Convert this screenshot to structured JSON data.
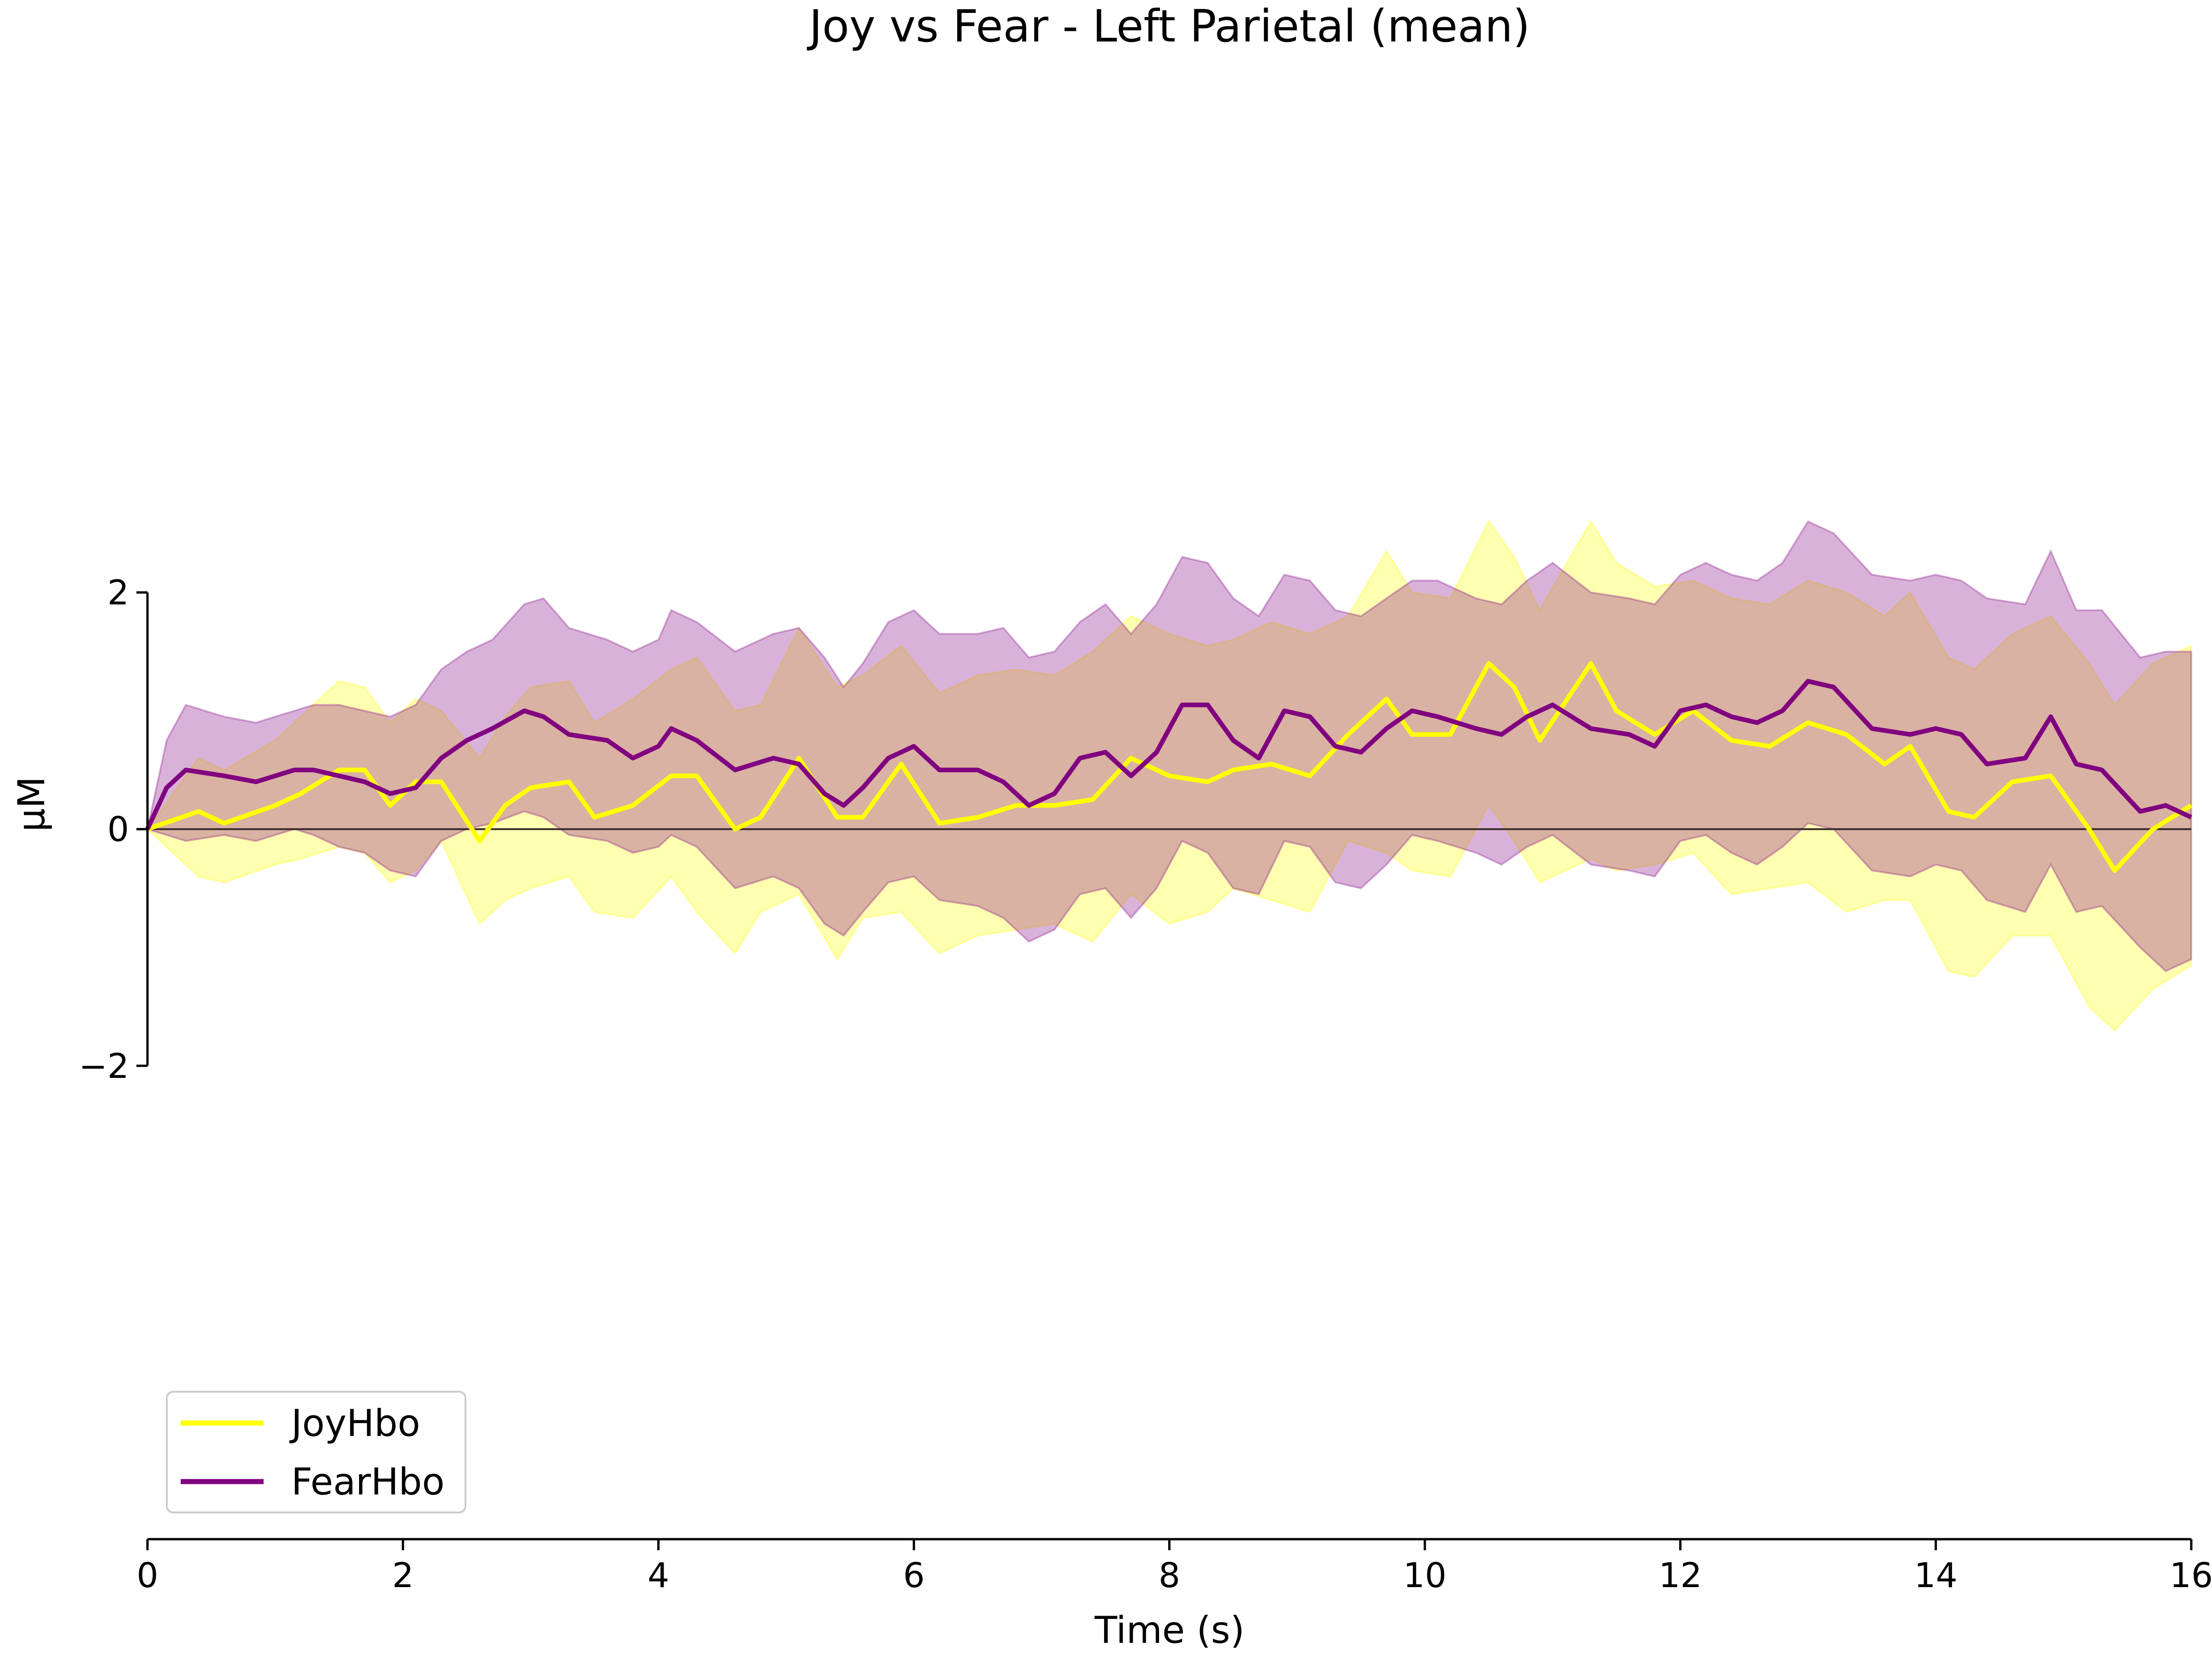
{
  "chart_data": {
    "type": "line",
    "title": "Joy vs Fear - Left Parietal (mean)",
    "xlabel": "Time (s)",
    "ylabel": "µM",
    "xlim": [
      0,
      16
    ],
    "ylim": [
      -2,
      2
    ],
    "ylim_view": [
      -6,
      6.5
    ],
    "xticks": [
      0,
      2,
      4,
      6,
      8,
      10,
      12,
      14,
      16
    ],
    "yticks": [
      -2,
      0,
      2
    ],
    "grid": false,
    "legend_position": "lower-left",
    "series": [
      {
        "name": "JoyHbo",
        "color": "#ffff00",
        "x": [
          0,
          0.4,
          0.6,
          1.0,
          1.2,
          1.5,
          1.7,
          1.9,
          2.1,
          2.3,
          2.6,
          2.8,
          3.0,
          3.3,
          3.5,
          3.8,
          4.1,
          4.3,
          4.6,
          4.8,
          5.1,
          5.4,
          5.6,
          5.9,
          6.2,
          6.5,
          6.8,
          7.1,
          7.4,
          7.7,
          8.0,
          8.3,
          8.5,
          8.8,
          9.1,
          9.4,
          9.7,
          9.9,
          10.2,
          10.5,
          10.7,
          10.9,
          11.3,
          11.5,
          11.8,
          12.1,
          12.4,
          12.7,
          13.0,
          13.3,
          13.6,
          13.8,
          14.1,
          14.3,
          14.6,
          14.9,
          15.2,
          15.4,
          15.7,
          16.0
        ],
        "y": [
          0.0,
          0.15,
          0.05,
          0.2,
          0.3,
          0.5,
          0.5,
          0.2,
          0.4,
          0.4,
          -0.1,
          0.2,
          0.35,
          0.4,
          0.1,
          0.2,
          0.45,
          0.45,
          0.0,
          0.1,
          0.6,
          0.1,
          0.1,
          0.55,
          0.05,
          0.1,
          0.2,
          0.2,
          0.25,
          0.6,
          0.45,
          0.4,
          0.5,
          0.55,
          0.45,
          0.8,
          1.1,
          0.8,
          0.8,
          1.4,
          1.2,
          0.75,
          1.4,
          1.0,
          0.8,
          1.0,
          0.75,
          0.7,
          0.9,
          0.8,
          0.55,
          0.7,
          0.15,
          0.1,
          0.4,
          0.45,
          0.0,
          -0.35,
          0.0,
          0.2
        ],
        "ci_lower": [
          0.0,
          -0.4,
          -0.45,
          -0.3,
          -0.25,
          -0.15,
          -0.2,
          -0.45,
          -0.35,
          -0.1,
          -0.8,
          -0.6,
          -0.5,
          -0.4,
          -0.7,
          -0.75,
          -0.4,
          -0.7,
          -1.05,
          -0.7,
          -0.55,
          -1.1,
          -0.75,
          -0.7,
          -1.05,
          -0.9,
          -0.85,
          -0.8,
          -0.95,
          -0.55,
          -0.8,
          -0.7,
          -0.5,
          -0.6,
          -0.7,
          -0.1,
          -0.2,
          -0.35,
          -0.4,
          0.2,
          -0.1,
          -0.45,
          -0.25,
          -0.35,
          -0.3,
          -0.2,
          -0.55,
          -0.5,
          -0.45,
          -0.7,
          -0.6,
          -0.6,
          -1.2,
          -1.25,
          -0.9,
          -0.9,
          -1.5,
          -1.7,
          -1.35,
          -1.15
        ],
        "ci_upper": [
          0.0,
          0.6,
          0.5,
          0.75,
          0.95,
          1.25,
          1.2,
          0.9,
          1.1,
          1.0,
          0.6,
          0.95,
          1.2,
          1.25,
          0.9,
          1.1,
          1.35,
          1.45,
          1.0,
          1.05,
          1.7,
          1.2,
          1.3,
          1.55,
          1.15,
          1.3,
          1.35,
          1.3,
          1.5,
          1.8,
          1.65,
          1.55,
          1.6,
          1.75,
          1.65,
          1.8,
          2.35,
          2.0,
          1.95,
          2.6,
          2.3,
          1.85,
          2.6,
          2.25,
          2.05,
          2.1,
          1.95,
          1.9,
          2.1,
          2.0,
          1.8,
          2.0,
          1.45,
          1.35,
          1.65,
          1.8,
          1.4,
          1.05,
          1.4,
          1.55
        ]
      },
      {
        "name": "FearHbo",
        "color": "#800080",
        "x": [
          0,
          0.15,
          0.3,
          0.6,
          0.85,
          1.0,
          1.15,
          1.3,
          1.5,
          1.7,
          1.9,
          2.1,
          2.3,
          2.5,
          2.7,
          2.95,
          3.1,
          3.3,
          3.6,
          3.8,
          4.0,
          4.1,
          4.3,
          4.6,
          4.9,
          5.1,
          5.3,
          5.45,
          5.6,
          5.8,
          6.0,
          6.2,
          6.5,
          6.7,
          6.9,
          7.1,
          7.3,
          7.5,
          7.7,
          7.9,
          8.1,
          8.3,
          8.5,
          8.7,
          8.9,
          9.1,
          9.3,
          9.5,
          9.7,
          9.9,
          10.1,
          10.4,
          10.6,
          10.8,
          11.0,
          11.3,
          11.6,
          11.8,
          12.0,
          12.2,
          12.4,
          12.6,
          12.8,
          13.0,
          13.2,
          13.5,
          13.8,
          14.0,
          14.2,
          14.4,
          14.7,
          14.9,
          15.1,
          15.3,
          15.6,
          15.8,
          16.0
        ],
        "y": [
          0.0,
          0.35,
          0.5,
          0.45,
          0.4,
          0.45,
          0.5,
          0.5,
          0.45,
          0.4,
          0.3,
          0.35,
          0.6,
          0.75,
          0.85,
          1.0,
          0.95,
          0.8,
          0.75,
          0.6,
          0.7,
          0.85,
          0.75,
          0.5,
          0.6,
          0.55,
          0.3,
          0.2,
          0.35,
          0.6,
          0.7,
          0.5,
          0.5,
          0.4,
          0.2,
          0.3,
          0.6,
          0.65,
          0.45,
          0.65,
          1.05,
          1.05,
          0.75,
          0.6,
          1.0,
          0.95,
          0.7,
          0.65,
          0.85,
          1.0,
          0.95,
          0.85,
          0.8,
          0.95,
          1.05,
          0.85,
          0.8,
          0.7,
          1.0,
          1.05,
          0.95,
          0.9,
          1.0,
          1.25,
          1.2,
          0.85,
          0.8,
          0.85,
          0.8,
          0.55,
          0.6,
          0.95,
          0.55,
          0.5,
          0.15,
          0.2,
          0.1
        ],
        "ci_lower": [
          0.0,
          -0.05,
          -0.1,
          -0.05,
          -0.1,
          -0.05,
          0.0,
          -0.05,
          -0.15,
          -0.2,
          -0.35,
          -0.4,
          -0.1,
          0.0,
          0.05,
          0.15,
          0.1,
          -0.05,
          -0.1,
          -0.2,
          -0.15,
          -0.05,
          -0.15,
          -0.5,
          -0.4,
          -0.5,
          -0.8,
          -0.9,
          -0.7,
          -0.45,
          -0.4,
          -0.6,
          -0.65,
          -0.75,
          -0.95,
          -0.85,
          -0.55,
          -0.5,
          -0.75,
          -0.5,
          -0.1,
          -0.2,
          -0.5,
          -0.55,
          -0.1,
          -0.15,
          -0.45,
          -0.5,
          -0.3,
          -0.05,
          -0.1,
          -0.2,
          -0.3,
          -0.15,
          -0.05,
          -0.3,
          -0.35,
          -0.4,
          -0.1,
          -0.05,
          -0.2,
          -0.3,
          -0.15,
          0.05,
          0.0,
          -0.35,
          -0.4,
          -0.3,
          -0.35,
          -0.6,
          -0.7,
          -0.3,
          -0.7,
          -0.65,
          -1.0,
          -1.2,
          -1.1
        ],
        "ci_upper": [
          0.0,
          0.75,
          1.05,
          0.95,
          0.9,
          0.95,
          1.0,
          1.05,
          1.05,
          1.0,
          0.95,
          1.05,
          1.35,
          1.5,
          1.6,
          1.9,
          1.95,
          1.7,
          1.6,
          1.5,
          1.6,
          1.85,
          1.75,
          1.5,
          1.65,
          1.7,
          1.45,
          1.2,
          1.4,
          1.75,
          1.85,
          1.65,
          1.65,
          1.7,
          1.45,
          1.5,
          1.75,
          1.9,
          1.65,
          1.9,
          2.3,
          2.25,
          1.95,
          1.8,
          2.15,
          2.1,
          1.85,
          1.8,
          1.95,
          2.1,
          2.1,
          1.95,
          1.9,
          2.1,
          2.25,
          2.0,
          1.95,
          1.9,
          2.15,
          2.25,
          2.15,
          2.1,
          2.25,
          2.6,
          2.5,
          2.15,
          2.1,
          2.15,
          2.1,
          1.95,
          1.9,
          2.35,
          1.85,
          1.85,
          1.45,
          1.5,
          1.5
        ]
      }
    ]
  }
}
